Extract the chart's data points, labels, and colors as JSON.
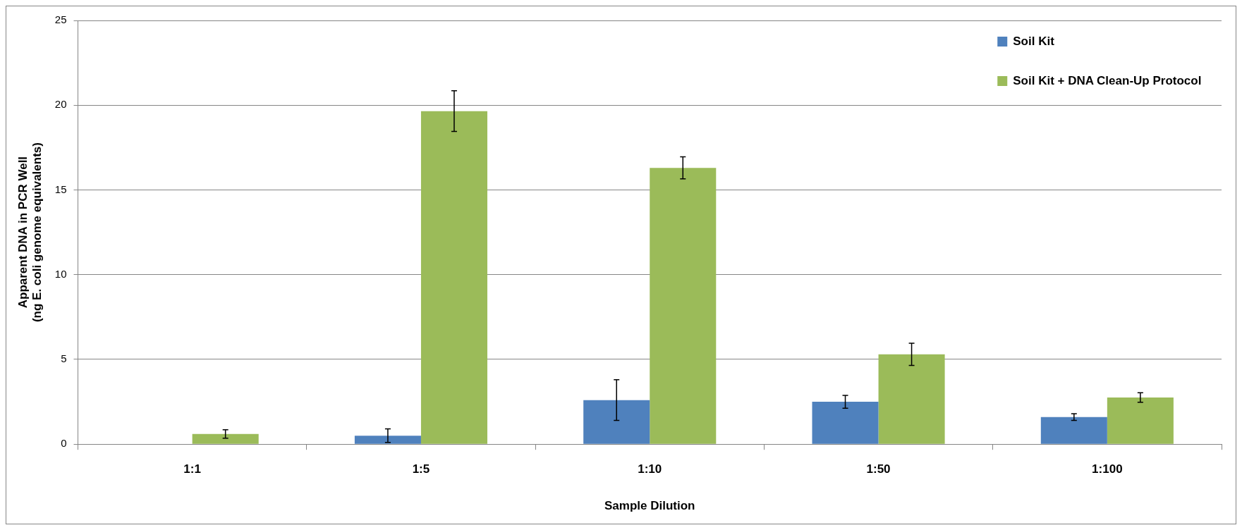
{
  "chart_data": {
    "type": "bar",
    "xlabel": "Sample Dilution",
    "ylabel": [
      "Apparent DNA in PCR Well",
      "(ng E. coli genome equivalents)"
    ],
    "categories": [
      "1:1",
      "1:5",
      "1:10",
      "1:50",
      "1:100"
    ],
    "series": [
      {
        "name": "Soil Kit",
        "color": "#4f81bd",
        "values": [
          0,
          0.5,
          2.6,
          2.5,
          1.6
        ],
        "errors": [
          null,
          0.4,
          1.2,
          0.38,
          0.2
        ]
      },
      {
        "name": "Soil Kit + DNA Clean-Up Protocol",
        "color": "#9bbb59",
        "values": [
          0.6,
          19.65,
          16.3,
          5.3,
          2.75
        ],
        "errors": [
          0.25,
          1.2,
          0.65,
          0.65,
          0.28
        ]
      }
    ],
    "ylim": [
      0,
      25
    ],
    "yticks": [
      0,
      5,
      10,
      15,
      20,
      25
    ],
    "grid": "y",
    "legend": "top right"
  }
}
